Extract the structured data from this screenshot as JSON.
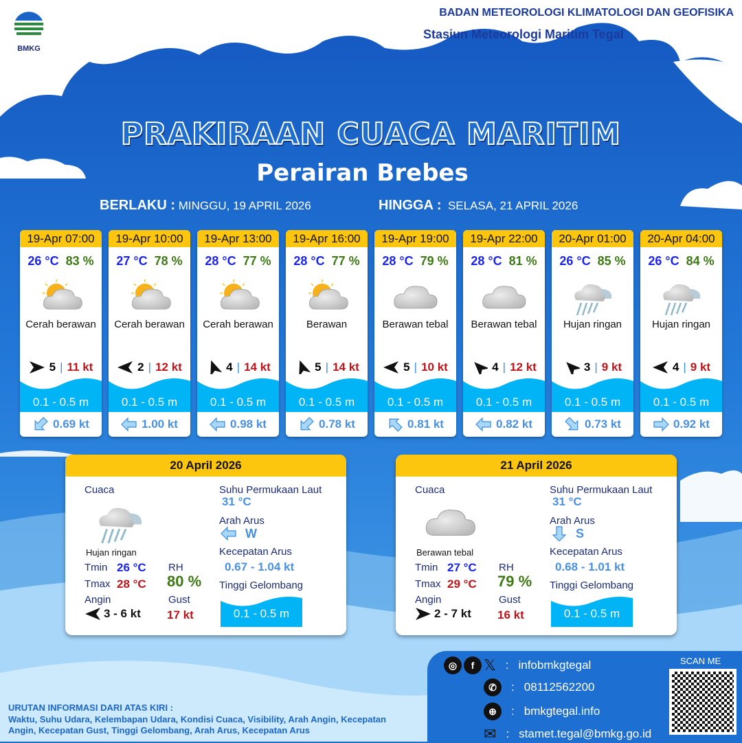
{
  "header": {
    "agency": "BADAN METEOROLOGI KLIMATOLOGI DAN GEOFISIKA",
    "station": "Stasiun Meteorologi Maritim Tegal",
    "logo_text": "BMKG"
  },
  "title": "PRAKIRAAN CUACA MARITIM",
  "subtitle": "Perairan Brebes",
  "validity": {
    "from_label": "BERLAKU :",
    "from_value": "MINGGU, 19 APRIL 2026",
    "to_label": "HINGGA :",
    "to_value": "SELASA, 21 APRIL 2026"
  },
  "colors": {
    "header_yellow": "#fcc60e",
    "wave_blue": "#00b4f6",
    "temp_blue": "#1a24f0",
    "rh_green": "#3d7a14",
    "gust_red": "#c0141a",
    "current_blue": "#4a90e2"
  },
  "forecasts": [
    {
      "time": "19-Apr 07:00",
      "temp": "26 °C",
      "rh": "83 %",
      "icon": "sun-cloud-icon",
      "weather": "Cerah berawan",
      "wind_dir_deg": 0,
      "wind_speed": "5",
      "gust": "11 kt",
      "wave": "0.1 - 0.5 m",
      "current_dir_deg": 135,
      "current": "0.69 kt"
    },
    {
      "time": "19-Apr 10:00",
      "temp": "27 °C",
      "rh": "78 %",
      "icon": "sun-cloud-icon",
      "weather": "Cerah berawan",
      "wind_dir_deg": 180,
      "wind_speed": "2",
      "gust": "12 kt",
      "wave": "0.1 - 0.5 m",
      "current_dir_deg": 180,
      "current": "1.00 kt"
    },
    {
      "time": "19-Apr 13:00",
      "temp": "28 °C",
      "rh": "77 %",
      "icon": "sun-cloud-icon",
      "weather": "Cerah berawan",
      "wind_dir_deg": -110,
      "wind_speed": "4",
      "gust": "14 kt",
      "wave": "0.1 - 0.5 m",
      "current_dir_deg": 180,
      "current": "0.98 kt"
    },
    {
      "time": "19-Apr 16:00",
      "temp": "28 °C",
      "rh": "77 %",
      "icon": "sun-cloud-icon",
      "weather": "Berawan",
      "wind_dir_deg": -110,
      "wind_speed": "5",
      "gust": "14 kt",
      "wave": "0.1 - 0.5 m",
      "current_dir_deg": 135,
      "current": "0.78 kt"
    },
    {
      "time": "19-Apr 19:00",
      "temp": "28 °C",
      "rh": "79 %",
      "icon": "cloud-icon",
      "weather": "Berawan tebal",
      "wind_dir_deg": 180,
      "wind_speed": "5",
      "gust": "10 kt",
      "wave": "0.1 - 0.5 m",
      "current_dir_deg": -135,
      "current": "0.81 kt"
    },
    {
      "time": "19-Apr 22:00",
      "temp": "28 °C",
      "rh": "81 %",
      "icon": "cloud-icon",
      "weather": "Berawan tebal",
      "wind_dir_deg": -135,
      "wind_speed": "4",
      "gust": "12 kt",
      "wave": "0.1 - 0.5 m",
      "current_dir_deg": 180,
      "current": "0.82 kt"
    },
    {
      "time": "20-Apr 01:00",
      "temp": "26 °C",
      "rh": "85 %",
      "icon": "rain-cloud-icon",
      "weather": "Hujan ringan",
      "wind_dir_deg": -135,
      "wind_speed": "3",
      "gust": "9 kt",
      "wave": "0.1 - 0.5 m",
      "current_dir_deg": 45,
      "current": "0.73 kt"
    },
    {
      "time": "20-Apr 04:00",
      "temp": "26 °C",
      "rh": "84 %",
      "icon": "rain-cloud-icon",
      "weather": "Hujan ringan",
      "wind_dir_deg": 180,
      "wind_speed": "4",
      "gust": "9 kt",
      "wave": "0.1 - 0.5 m",
      "current_dir_deg": 0,
      "current": "0.92 kt"
    }
  ],
  "daily": [
    {
      "date": "20 April 2026",
      "weather_label": "Cuaca",
      "icon": "rain-cloud-icon",
      "weather": "Hujan ringan",
      "sst_label": "Suhu Permukaan Laut",
      "sst": "31 °C",
      "current_dir_label": "Arah Arus",
      "current_dir_deg": 180,
      "current_dir": "W",
      "current_speed_label": "Kecepatan Arus",
      "current_speed": "0.67 - 1.04 kt",
      "wave_label": "Tinggi Gelombang",
      "wave": "0.1 - 0.5 m",
      "tmin_label": "Tmin",
      "tmin": "26 °C",
      "tmax_label": "Tmax",
      "tmax": "28 °C",
      "rh_label": "RH",
      "rh": "80 %",
      "wind_label": "Angin",
      "wind_dir_deg": 180,
      "wind": "3  - 6 kt",
      "gust_label": "Gust",
      "gust": "17 kt"
    },
    {
      "date": "21 April 2026",
      "weather_label": "Cuaca",
      "icon": "cloud-icon",
      "weather": "Berawan tebal",
      "sst_label": "Suhu Permukaan Laut",
      "sst": "31 °C",
      "current_dir_label": "Arah Arus",
      "current_dir_deg": 90,
      "current_dir": "S",
      "current_speed_label": "Kecepatan Arus",
      "current_speed": "0.68 - 1.01 kt",
      "wave_label": "Tinggi Gelombang",
      "wave": "0.1 - 0.5 m",
      "tmin_label": "Tmin",
      "tmin": "27 °C",
      "tmax_label": "Tmax",
      "tmax": "29 °C",
      "rh_label": "RH",
      "rh": "79 %",
      "wind_label": "Angin",
      "wind_dir_deg": 0,
      "wind": "2  - 7 kt",
      "gust_label": "Gust",
      "gust": "16 kt"
    }
  ],
  "footer": {
    "info_title": "URUTAN INFORMASI DARI ATAS KIRI :",
    "info_text": "Waktu, Suhu Udara, Kelembapan Udara, Kondisi Cuaca, Visibility, Arah Angin, Kecepatan Angin, Kecepatan Gust, Tinggi Gelombang, Arah Arus, Kecepatan Arus"
  },
  "contact": {
    "social": "infobmkgtegal",
    "phone": "08112562200",
    "website": "bmkgtegal.info",
    "email": "stamet.tegal@bmkg.go.id",
    "colon": ":",
    "scan_label": "SCAN ME"
  }
}
